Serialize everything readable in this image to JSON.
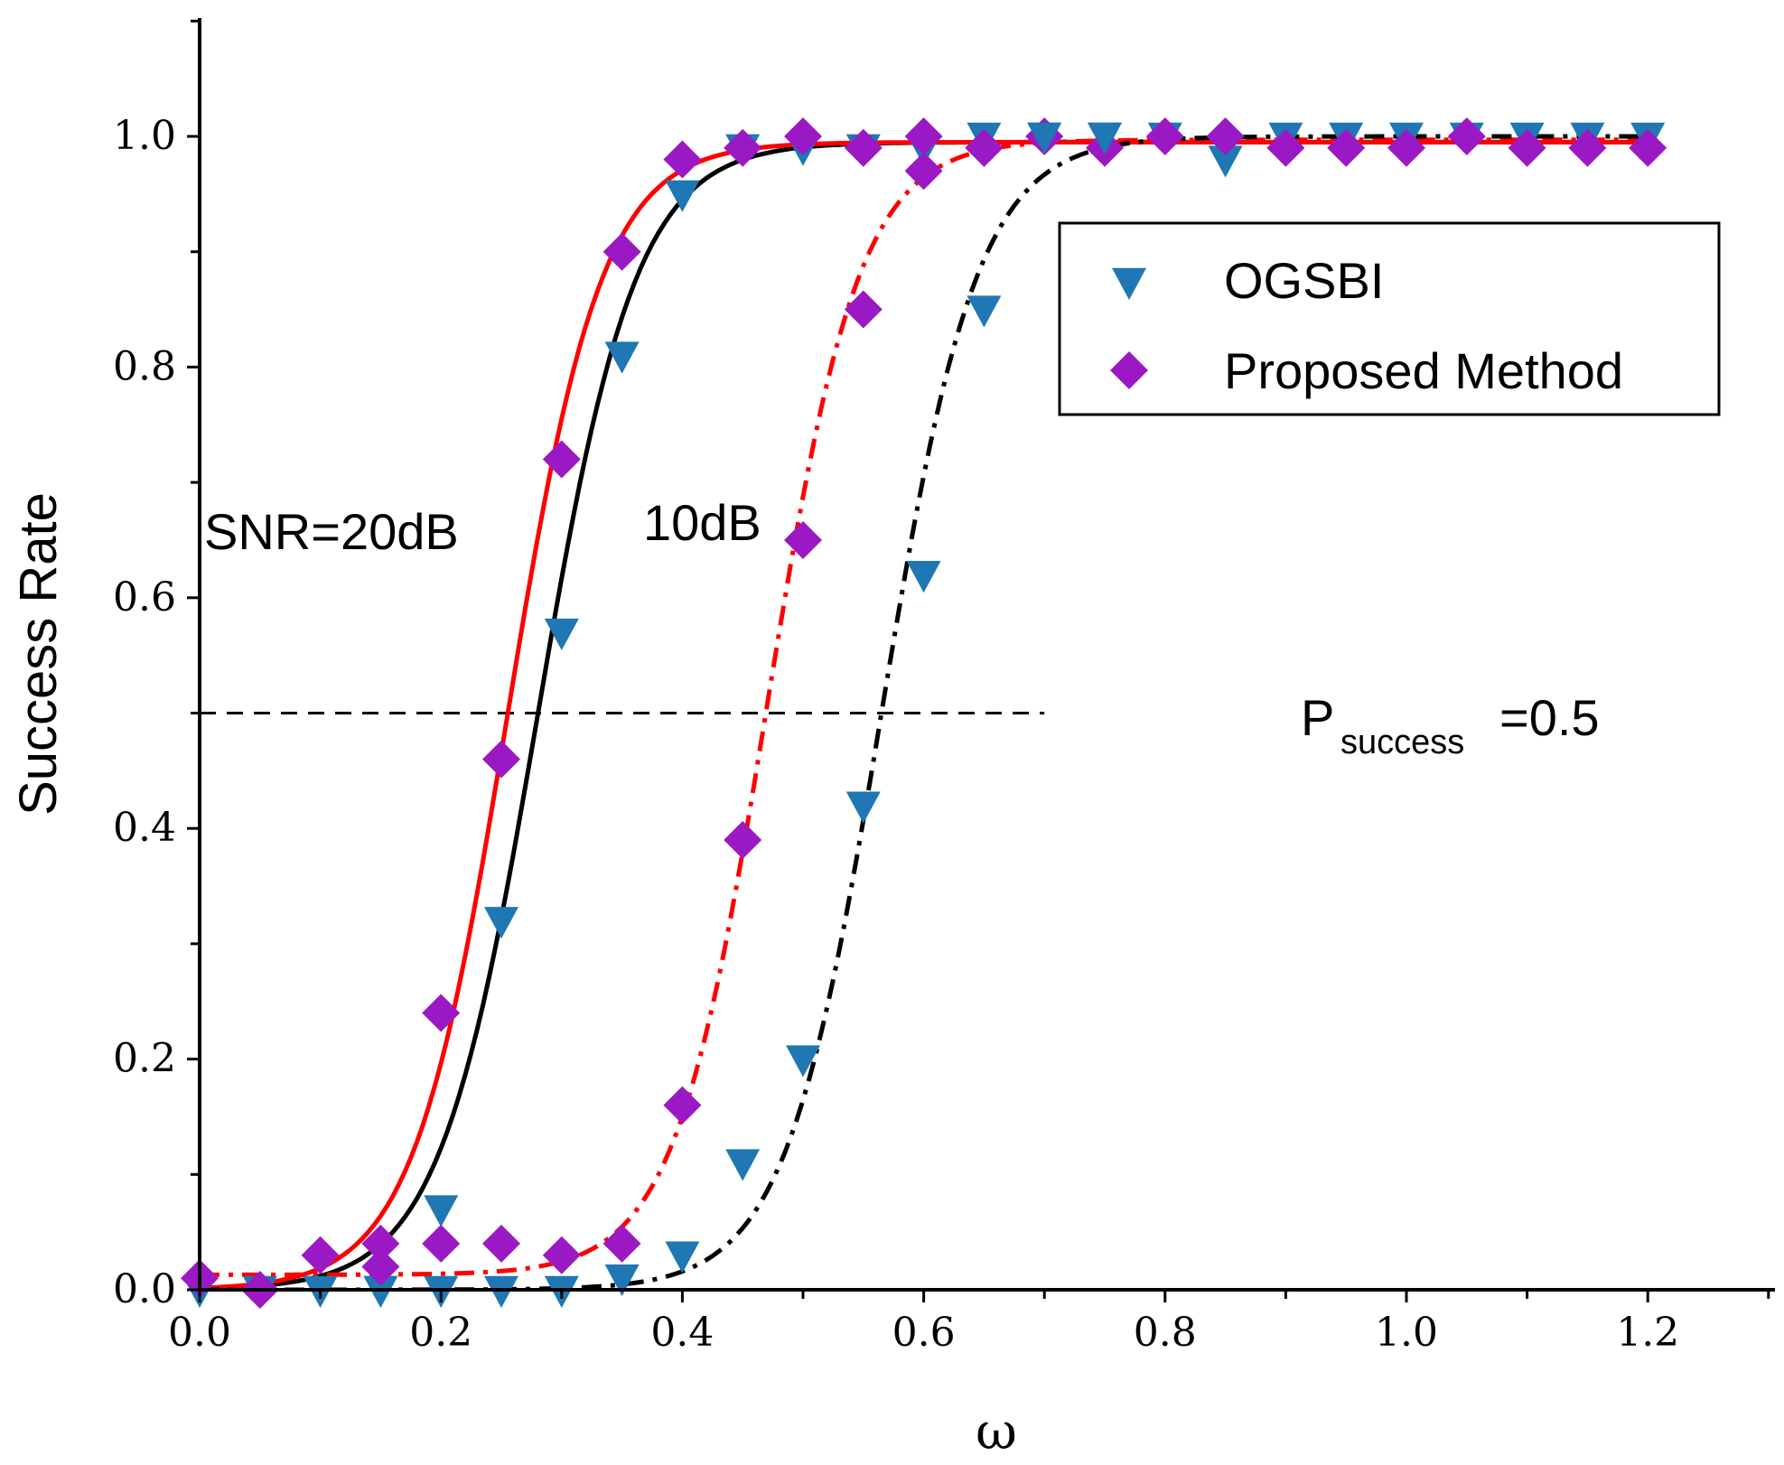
{
  "chart_data": {
    "type": "line",
    "title": "",
    "xlabel": "ω",
    "ylabel": "Success Rate",
    "xlim": [
      0,
      1.3
    ],
    "ylim": [
      0,
      1.1
    ],
    "x_ticks": [
      "0.0",
      "0.2",
      "0.4",
      "0.6",
      "0.8",
      "1.0",
      "1.2"
    ],
    "y_ticks": [
      "0.0",
      "0.2",
      "0.4",
      "0.6",
      "0.8",
      "1.0"
    ],
    "grid": false,
    "legend_position": "top-right",
    "legend": [
      {
        "label": "OGSBI",
        "marker": "triangle-down",
        "color": "#1f77b4"
      },
      {
        "label": "Proposed Method",
        "marker": "diamond",
        "color": "#9b19c4"
      }
    ],
    "annotations": {
      "snr20": "SNR=20dB",
      "snr10": "10dB",
      "threshold_main": "P",
      "threshold_sub": "success",
      "threshold_tail": "=0.5"
    },
    "threshold": 0.5,
    "colors": {
      "ogsbi_marker": "#1f77b4",
      "proposed_marker": "#9b19c4",
      "ogsbi_fit": "#000000",
      "proposed_fit": "#ff0000"
    },
    "series": [
      {
        "group": "SNR=20dB",
        "marker": "triangle-down",
        "color": "#1f77b4",
        "x": [
          0.0,
          0.05,
          0.1,
          0.15,
          0.2,
          0.25,
          0.3,
          0.35,
          0.4,
          0.45,
          0.5,
          0.55,
          0.6,
          0.65,
          0.7,
          0.75,
          0.8,
          0.85,
          0.9,
          0.95,
          1.0,
          1.05,
          1.1,
          1.15,
          1.2
        ],
        "values": [
          0.0,
          0.0,
          0.0,
          0.0,
          0.07,
          0.32,
          0.57,
          0.81,
          0.95,
          0.99,
          0.99,
          0.99,
          0.99,
          1.0,
          1.0,
          1.0,
          1.0,
          0.98,
          1.0,
          1.0,
          1.0,
          1.0,
          1.0,
          1.0,
          1.0
        ]
      },
      {
        "group": "SNR=20dB",
        "marker": "diamond",
        "color": "#9b19c4",
        "x": [
          0.0,
          0.05,
          0.1,
          0.15,
          0.2,
          0.25,
          0.3,
          0.35,
          0.4,
          0.45,
          0.5,
          0.55,
          0.6,
          0.65,
          0.7,
          0.75,
          0.8,
          0.85,
          0.9,
          0.95,
          1.0,
          1.05,
          1.1,
          1.15,
          1.2
        ],
        "values": [
          0.01,
          0.0,
          0.03,
          0.04,
          0.24,
          0.46,
          0.72,
          0.9,
          0.98,
          0.99,
          1.0,
          0.99,
          1.0,
          0.99,
          1.0,
          0.99,
          1.0,
          1.0,
          0.99,
          0.99,
          0.99,
          1.0,
          0.99,
          0.99,
          0.99
        ]
      },
      {
        "group": "10dB",
        "marker": "triangle-down",
        "color": "#1f77b4",
        "x": [
          0.15,
          0.2,
          0.25,
          0.3,
          0.35,
          0.4,
          0.45,
          0.5,
          0.55,
          0.6,
          0.65,
          0.7,
          0.75
        ],
        "values": [
          0.0,
          0.0,
          0.0,
          0.0,
          0.01,
          0.03,
          0.11,
          0.2,
          0.42,
          0.62,
          0.85,
          1.0,
          1.0
        ]
      },
      {
        "group": "10dB",
        "marker": "diamond",
        "color": "#9b19c4",
        "x": [
          0.15,
          0.2,
          0.25,
          0.3,
          0.35,
          0.4,
          0.45,
          0.5,
          0.55,
          0.6,
          0.65
        ],
        "values": [
          0.02,
          0.04,
          0.04,
          0.03,
          0.04,
          0.16,
          0.39,
          0.65,
          0.85,
          0.97,
          0.99
        ]
      }
    ],
    "fits": [
      {
        "color": "#000000",
        "dash": "solid",
        "x0": 0.28,
        "k": 24.5,
        "base": 0.0,
        "top": 0.995
      },
      {
        "color": "#ff0000",
        "dash": "solid",
        "x0": 0.255,
        "k": 25.5,
        "base": 0.0,
        "top": 0.995
      },
      {
        "color": "#ff0000",
        "dash": "dashdot",
        "x0": 0.47,
        "k": 26.0,
        "base": 0.013,
        "top": 0.997
      },
      {
        "color": "#000000",
        "dash": "dashdot",
        "x0": 0.565,
        "k": 25.0,
        "base": 0.0,
        "top": 1.0
      }
    ]
  }
}
